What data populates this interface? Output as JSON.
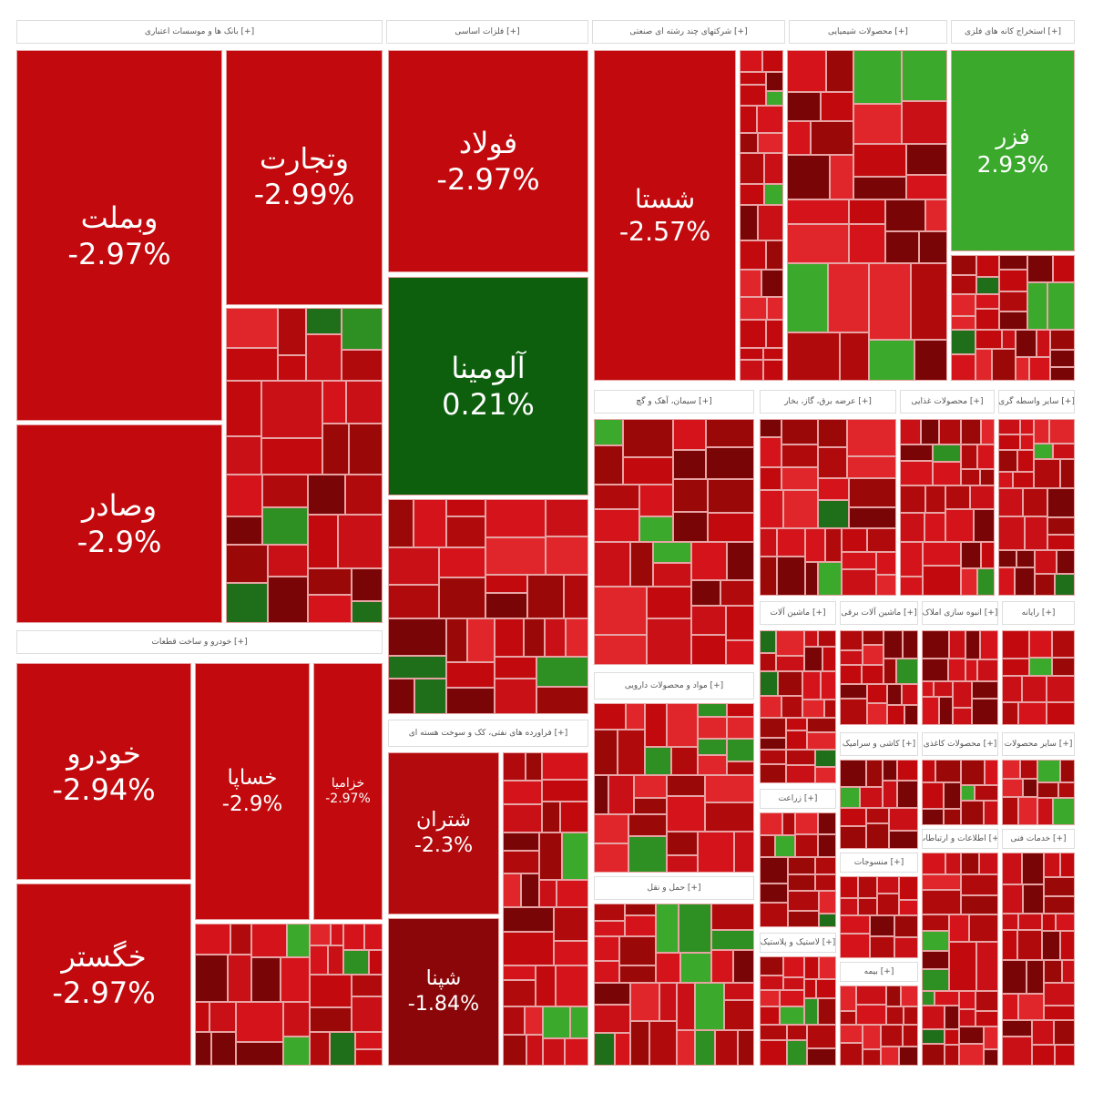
{
  "sectors": [
    {
      "label": "[+] بانک ها و موسسات اعتباری",
      "tiles": [
        {
          "name": "وبملت",
          "change": "-2.97%",
          "color": "#c20a0e"
        },
        {
          "name": "وتجارت",
          "change": "-2.99%",
          "color": "#c20a0e"
        },
        {
          "name": "وصادر",
          "change": "-2.9%",
          "color": "#c20a0e"
        }
      ]
    },
    {
      "label": "[+] فلزات اساسی",
      "tiles": [
        {
          "name": "فولاد",
          "change": "-2.97%",
          "color": "#c20a0e"
        },
        {
          "name": "آلومینا",
          "change": "0.21%",
          "color": "#0d5f0d"
        }
      ]
    },
    {
      "label": "[+] شرکتهای چند رشته ای صنعتی",
      "tiles": [
        {
          "name": "شستا",
          "change": "-2.57%",
          "color": "#c20a0e"
        }
      ]
    },
    {
      "label": "[+] محصولات شیمیایی"
    },
    {
      "label": "[+] استخراج کانه های فلزی",
      "tiles": [
        {
          "name": "فزر",
          "change": "2.93%",
          "color": "#3aa92c"
        }
      ]
    },
    {
      "label": "[+] خودرو و ساخت قطعات",
      "tiles": [
        {
          "name": "خودرو",
          "change": "-2.94%",
          "color": "#c20a0e"
        },
        {
          "name": "خگستر",
          "change": "-2.97%",
          "color": "#c20a0e"
        },
        {
          "name": "خساپا",
          "change": "-2.9%",
          "color": "#c20a0e"
        },
        {
          "name": "خزامیا",
          "change": "-2.97%",
          "color": "#c20a0e"
        }
      ]
    },
    {
      "label": "[+] فراورده های نفتی، کک و سوخت هسته ای",
      "tiles": [
        {
          "name": "شتران",
          "change": "-2.3%",
          "color": "#b30a0e"
        },
        {
          "name": "شپنا",
          "change": "-1.84%",
          "color": "#8a0608"
        }
      ]
    },
    {
      "label": "[+] سیمان، آهک و گچ"
    },
    {
      "label": "[+] عرضه برق، گاز، بخار"
    },
    {
      "label": "[+] محصولات غذایی"
    },
    {
      "label": "[+] سایر واسطه گری"
    },
    {
      "label": "[+] مواد و محصولات دارویی"
    },
    {
      "label": "[+] حمل و نقل"
    },
    {
      "label": "[+] ماشین آلات"
    },
    {
      "label": "[+] ماشین آلات برقی"
    },
    {
      "label": "[+] انبوه سازی املاک"
    },
    {
      "label": "[+] رایانه"
    },
    {
      "label": "[+] زراعت"
    },
    {
      "label": "[+] کاشی و سرامیک"
    },
    {
      "label": "[+] محصولات کاغذی"
    },
    {
      "label": "[+] سایر محصولات"
    },
    {
      "label": "[+] لاستیک و پلاستیک"
    },
    {
      "label": "[+] منسوجات"
    },
    {
      "label": "[+] بیمه"
    },
    {
      "label": "[+] اطلاعات و ارتباطات"
    },
    {
      "label": "[+] خدمات فنی"
    }
  ]
}
